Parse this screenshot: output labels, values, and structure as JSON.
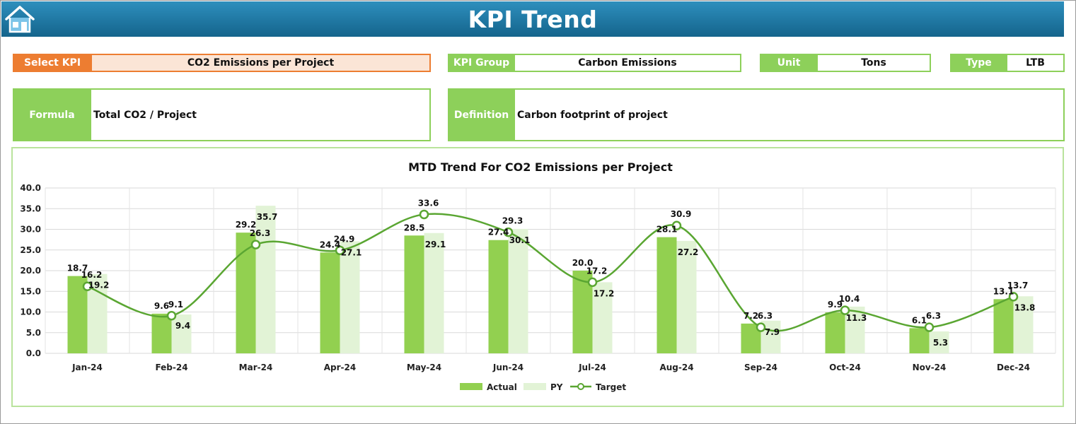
{
  "header": {
    "title": "KPI Trend",
    "home_icon": "home-icon"
  },
  "fields": {
    "select_kpi": {
      "label": "Select KPI",
      "value": "CO2 Emissions per Project"
    },
    "kpi_group": {
      "label": "KPI Group",
      "value": "Carbon Emissions"
    },
    "unit": {
      "label": "Unit",
      "value": "Tons"
    },
    "type": {
      "label": "Type",
      "value": "LTB"
    },
    "formula": {
      "label": "Formula",
      "value": "Total CO2 / Project"
    },
    "definition": {
      "label": "Definition",
      "value": "Carbon footprint of project"
    }
  },
  "colors": {
    "accent": "#8dd05a",
    "select_label": "#ed7d31",
    "select_value_bg": "#fbe5d6",
    "actual": "#92d050",
    "py": "#e2f3d6",
    "target": "#5aa632"
  },
  "chart_data": {
    "type": "bar",
    "title": "MTD Trend For CO2 Emissions per Project",
    "categories": [
      "Jan-24",
      "Feb-24",
      "Mar-24",
      "Apr-24",
      "May-24",
      "Jun-24",
      "Jul-24",
      "Aug-24",
      "Sep-24",
      "Oct-24",
      "Nov-24",
      "Dec-24"
    ],
    "series": [
      {
        "name": "Actual",
        "type": "bar",
        "values": [
          18.7,
          9.6,
          29.2,
          24.4,
          28.5,
          27.4,
          20.0,
          28.1,
          7.2,
          9.9,
          6.1,
          13.1
        ]
      },
      {
        "name": "PY",
        "type": "bar",
        "values": [
          19.2,
          9.4,
          35.7,
          27.1,
          29.1,
          30.1,
          17.2,
          27.2,
          7.9,
          11.3,
          5.3,
          13.8
        ]
      },
      {
        "name": "Target",
        "type": "line",
        "values": [
          16.2,
          9.1,
          26.3,
          24.9,
          33.6,
          29.3,
          17.2,
          30.9,
          6.3,
          10.4,
          6.3,
          13.7
        ]
      }
    ],
    "ylim": [
      0,
      40
    ],
    "yticks": [
      "0.0",
      "5.0",
      "10.0",
      "15.0",
      "20.0",
      "25.0",
      "30.0",
      "35.0",
      "40.0"
    ],
    "grid": true,
    "legend_position": "bottom"
  }
}
